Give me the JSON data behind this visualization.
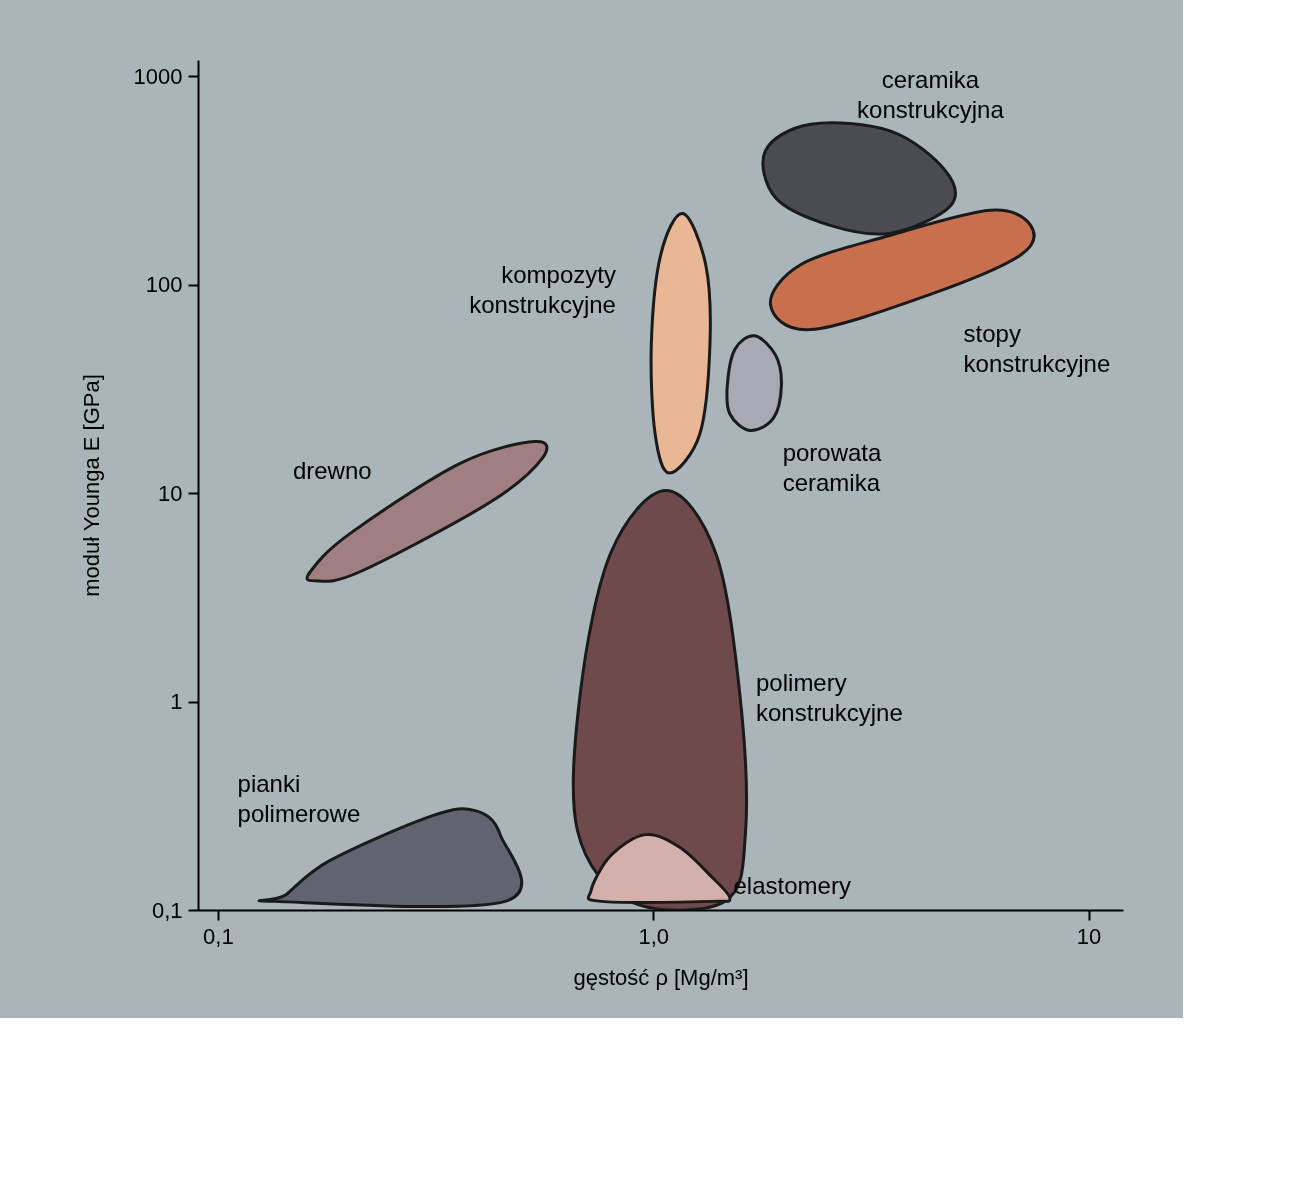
{
  "chart_data": {
    "type": "area",
    "xlabel": "gęstość ρ [Mg/m³]",
    "ylabel": "moduł Younga E [GPa]",
    "log": "xy",
    "xlim": [
      0.09,
      12
    ],
    "ylim": [
      0.1,
      1200
    ],
    "xticks": [
      {
        "value": 0.1,
        "label": "0,1"
      },
      {
        "value": 1,
        "label": "1,0"
      },
      10
    ],
    "yticks": [
      {
        "value": 0.1,
        "label": "0,1"
      },
      1,
      10,
      100,
      1000
    ],
    "grid": false,
    "marker": "none",
    "line_style": "solid",
    "series": [
      {
        "name": "ceramika\nkonstrukcyjna",
        "color": "#4a4c52",
        "x": [
          1.81,
          2.3,
          3.51,
          4.69,
          4.82,
          3.51,
          2.55,
          1.91
        ],
        "values": [
          440,
          590,
          547,
          353,
          240,
          177,
          193,
          262
        ]
      },
      {
        "name": "stopy\nkonstrukcyjne",
        "color": "#c8704e",
        "x": [
          1.86,
          2.18,
          3.51,
          5.95,
          7.36,
          6.98,
          4.33,
          2.3
        ],
        "values": [
          80,
          125,
          173,
          228,
          193,
          139,
          90,
          61
        ]
      },
      {
        "name": "kompozyty\nkonstrukcyjne",
        "color": "#e8b896",
        "x": [
          1.17,
          1.32,
          1.35,
          1.28,
          1.09,
          1.01,
          0.99,
          1.04
        ],
        "values": [
          220,
          125,
          52,
          19.3,
          12.5,
          19.3,
          52,
          139
        ]
      },
      {
        "name": "porowata\nceramika",
        "color": "#a7a9b3",
        "x": [
          1.71,
          1.91,
          1.97,
          1.89,
          1.67,
          1.5,
          1.48,
          1.54
        ],
        "values": [
          57,
          46,
          33,
          23,
          20,
          24,
          33,
          49
        ]
      },
      {
        "name": "drewno",
        "color": "#a07f82",
        "x": [
          0.163,
          0.201,
          0.36,
          0.535,
          0.556,
          0.42,
          0.212,
          0.167
        ],
        "values": [
          4.2,
          6.4,
          13.9,
          17.7,
          14.7,
          9.0,
          4.2,
          3.8
        ]
      },
      {
        "name": "polimery\nkonstrukcyjne",
        "color": "#6e4a4c",
        "x": [
          1.07,
          1.39,
          1.58,
          1.63,
          1.46,
          0.885,
          0.67,
          0.68,
          0.8
        ],
        "values": [
          10.3,
          5.2,
          1.1,
          0.24,
          0.11,
          0.11,
          0.24,
          1.1,
          5.2
        ]
      },
      {
        "name": "elastomery",
        "color": "#d4b0ac",
        "x": [
          0.96,
          1.15,
          1.35,
          1.5,
          1.35,
          0.76,
          0.72,
          0.8
        ],
        "values": [
          0.23,
          0.2,
          0.147,
          0.114,
          0.11,
          0.11,
          0.124,
          0.183
        ]
      },
      {
        "name": "pianki\npolimerowe",
        "color": "#5f6470",
        "x": [
          0.143,
          0.181,
          0.31,
          0.39,
          0.445,
          0.457,
          0.135
        ],
        "values": [
          0.118,
          0.173,
          0.283,
          0.3,
          0.23,
          0.11,
          0.11
        ]
      }
    ]
  }
}
